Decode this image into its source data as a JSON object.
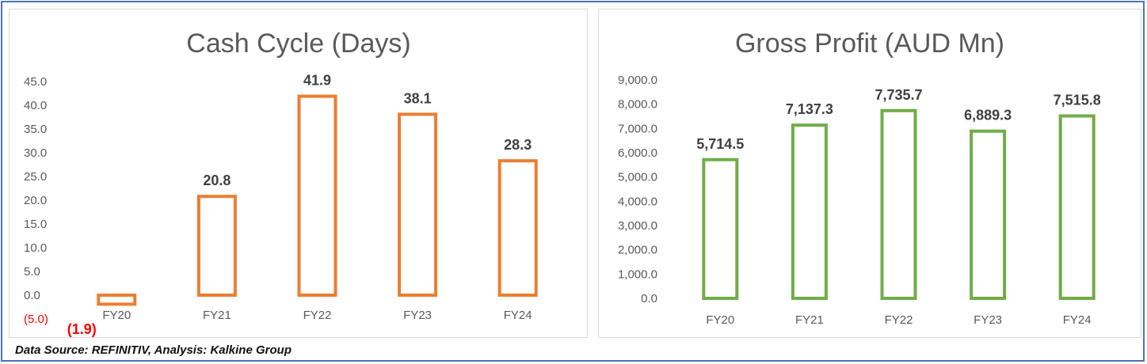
{
  "footer": {
    "source_text": "Data Source: REFINITIV, Analysis: Kalkine Group"
  },
  "chart_data": [
    {
      "type": "bar",
      "title": "Cash Cycle (Days)",
      "categories": [
        "FY20",
        "FY21",
        "FY22",
        "FY23",
        "FY24"
      ],
      "values": [
        -1.9,
        20.8,
        41.9,
        38.1,
        28.3
      ],
      "value_labels": [
        "(1.9)",
        "20.8",
        "41.9",
        "38.1",
        "28.3"
      ],
      "yticks": [
        -5,
        0,
        5,
        10,
        15,
        20,
        25,
        30,
        35,
        40,
        45
      ],
      "ytick_labels": [
        "(5.0)",
        "0.0",
        "5.0",
        "10.0",
        "15.0",
        "20.0",
        "25.0",
        "30.0",
        "35.0",
        "40.0",
        "45.0"
      ],
      "ylim": [
        -5,
        45
      ],
      "xlabel": "",
      "ylabel": "",
      "bar_outline_color": "#ed7d31",
      "negative_label_color": "#ff0000",
      "grid": false,
      "legend": "none"
    },
    {
      "type": "bar",
      "title": "Gross Profit (AUD Mn)",
      "categories": [
        "FY20",
        "FY21",
        "FY22",
        "FY23",
        "FY24"
      ],
      "values": [
        5714.5,
        7137.3,
        7735.7,
        6889.3,
        7515.8
      ],
      "value_labels": [
        "5,714.5",
        "7,137.3",
        "7,735.7",
        "6,889.3",
        "7,515.8"
      ],
      "yticks": [
        0,
        1000,
        2000,
        3000,
        4000,
        5000,
        6000,
        7000,
        8000,
        9000
      ],
      "ytick_labels": [
        "0.0",
        "1,000.0",
        "2,000.0",
        "3,000.0",
        "4,000.0",
        "5,000.0",
        "6,000.0",
        "7,000.0",
        "8,000.0",
        "9,000.0"
      ],
      "ylim": [
        0,
        9000
      ],
      "xlabel": "",
      "ylabel": "",
      "bar_outline_color": "#70ad47",
      "grid": false,
      "legend": "none"
    }
  ]
}
